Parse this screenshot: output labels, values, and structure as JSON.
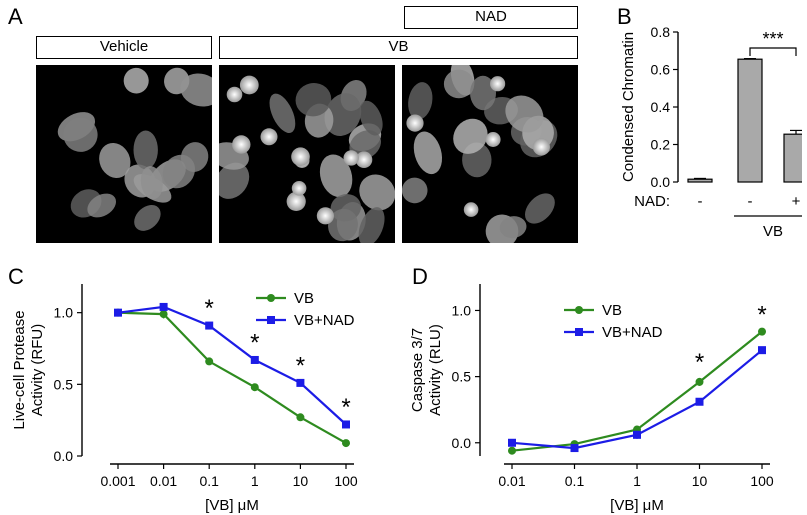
{
  "panel_letters": {
    "a": "A",
    "b": "B",
    "c": "C",
    "d": "D"
  },
  "panel_a": {
    "header_nad": "NAD",
    "header_vehicle": "Vehicle",
    "header_vb": "VB",
    "images": [
      {
        "condition": "Vehicle",
        "nuclei": "uniform-grey-nuclei"
      },
      {
        "condition": "VB",
        "nuclei": "condensed-bright-nuclei"
      },
      {
        "condition": "VB+NAD",
        "nuclei": "mixed-nuclei"
      }
    ]
  },
  "chart_data": [
    {
      "panel": "B",
      "type": "bar",
      "ylabel": "Condensed Chromatin",
      "ylim": [
        0,
        0.8
      ],
      "yticks": [
        "0.0",
        "0.2",
        "0.4",
        "0.6",
        "0.8"
      ],
      "row_label": "NAD:",
      "categories": [
        "-",
        "-",
        "+"
      ],
      "values": [
        0.015,
        0.655,
        0.255
      ],
      "errors": [
        0.004,
        0.003,
        0.02
      ],
      "group_label": "VB",
      "significance": "***",
      "bar_color": "#a9a9a9"
    },
    {
      "panel": "C",
      "type": "line",
      "xscale": "log",
      "xlabel": "[VB] μM",
      "ylabel_line1": "Live-cell Protease",
      "ylabel_line2": "Activity (RFU)",
      "x": [
        0.001,
        0.01,
        0.1,
        1,
        10,
        100
      ],
      "xticklabels": [
        "0.001",
        "0.01",
        "0.1",
        "1",
        "10",
        "100"
      ],
      "ylim": [
        0.0,
        1.2
      ],
      "yticks": [
        "0.0",
        "0.5",
        "1.0"
      ],
      "series": [
        {
          "name": "VB",
          "color": "#2e8b1f",
          "marker": "circle",
          "values": [
            1.0,
            0.99,
            0.66,
            0.48,
            0.27,
            0.09
          ],
          "errors": [
            0.02,
            0.03,
            0.01,
            0.02,
            0.01,
            0.01
          ]
        },
        {
          "name": "VB+NAD",
          "color": "#1c1ce6",
          "marker": "square",
          "values": [
            1.0,
            1.04,
            0.91,
            0.67,
            0.51,
            0.22
          ],
          "errors": [
            0.02,
            0.02,
            0.01,
            0.01,
            0.01,
            0.01
          ]
        }
      ],
      "significance_marks": [
        {
          "x": 0.1,
          "label": "*"
        },
        {
          "x": 1,
          "label": "*"
        },
        {
          "x": 10,
          "label": "*"
        },
        {
          "x": 100,
          "label": "*"
        }
      ],
      "legend_position": "top-right"
    },
    {
      "panel": "D",
      "type": "line",
      "xscale": "log",
      "xlabel": "[VB] μM",
      "ylabel_line1": "Caspase 3/7",
      "ylabel_line2": "Activity (RLU)",
      "x": [
        0.01,
        0.1,
        1,
        10,
        100
      ],
      "xticklabels": [
        "0.01",
        "0.1",
        "1",
        "10",
        "100"
      ],
      "ylim": [
        -0.1,
        1.2
      ],
      "yticks": [
        "0.0",
        "0.5",
        "1.0"
      ],
      "series": [
        {
          "name": "VB",
          "color": "#2e8b1f",
          "marker": "circle",
          "values": [
            -0.06,
            -0.01,
            0.1,
            0.46,
            0.84
          ],
          "errors": [
            0.01,
            0.01,
            0.02,
            0.03,
            0.01
          ]
        },
        {
          "name": "VB+NAD",
          "color": "#1c1ce6",
          "marker": "square",
          "values": [
            0.0,
            -0.04,
            0.06,
            0.31,
            0.7
          ],
          "errors": [
            0.01,
            0.01,
            0.03,
            0.02,
            0.02
          ]
        }
      ],
      "significance_marks": [
        {
          "x": 10,
          "label": "*"
        },
        {
          "x": 100,
          "label": "*"
        }
      ],
      "legend_position": "top-left"
    }
  ]
}
